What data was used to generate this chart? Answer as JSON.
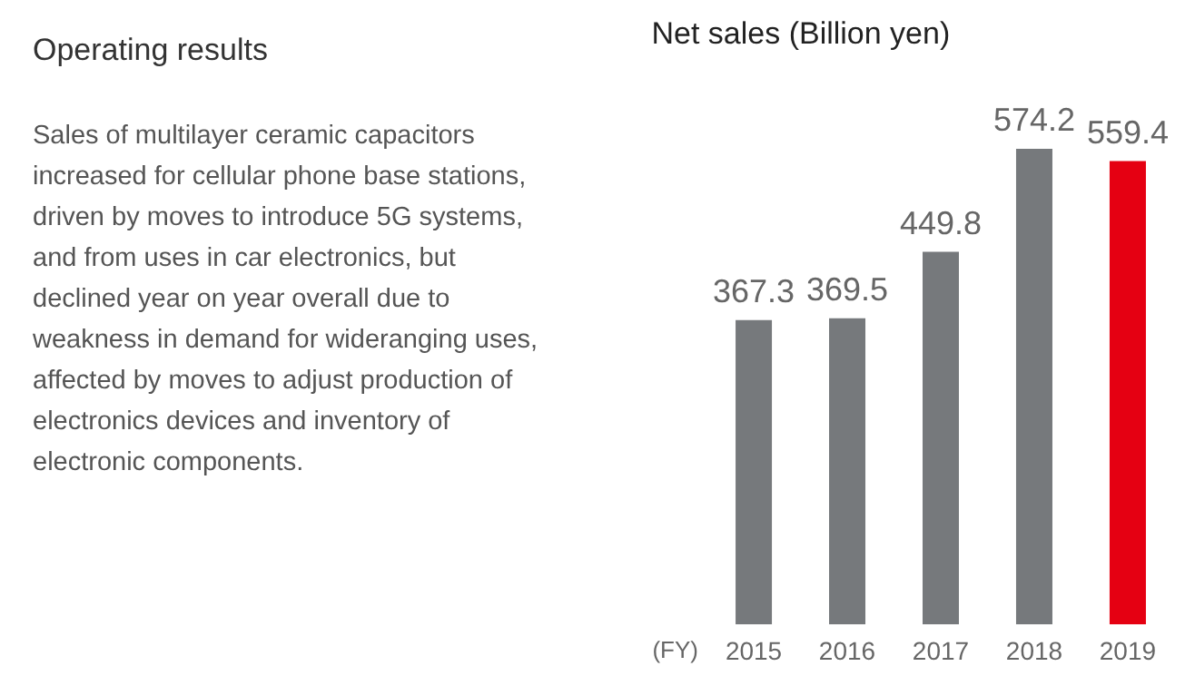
{
  "chart_data": [
    {
      "type": "other",
      "title": "Operating results",
      "annotations": [
        "Sales of multilayer ceramic capacitors increased for cellular phone base stations, driven by moves to introduce 5G systems, and from uses in car electronics, but declined year on year overall due to weakness in demand for wideranging uses, affected by moves to adjust production of electronics devices and inventory of electronic components."
      ]
    },
    {
      "type": "bar",
      "title": "Net sales (Billion yen)",
      "xlabel": "(FY)",
      "categories": [
        "2015",
        "2016",
        "2017",
        "2018",
        "2019"
      ],
      "values": [
        367.3,
        369.5,
        449.8,
        574.2,
        559.4
      ],
      "colors": [
        "#76797c",
        "#76797c",
        "#76797c",
        "#76797c",
        "#e50012"
      ],
      "data_labels": true
    }
  ]
}
